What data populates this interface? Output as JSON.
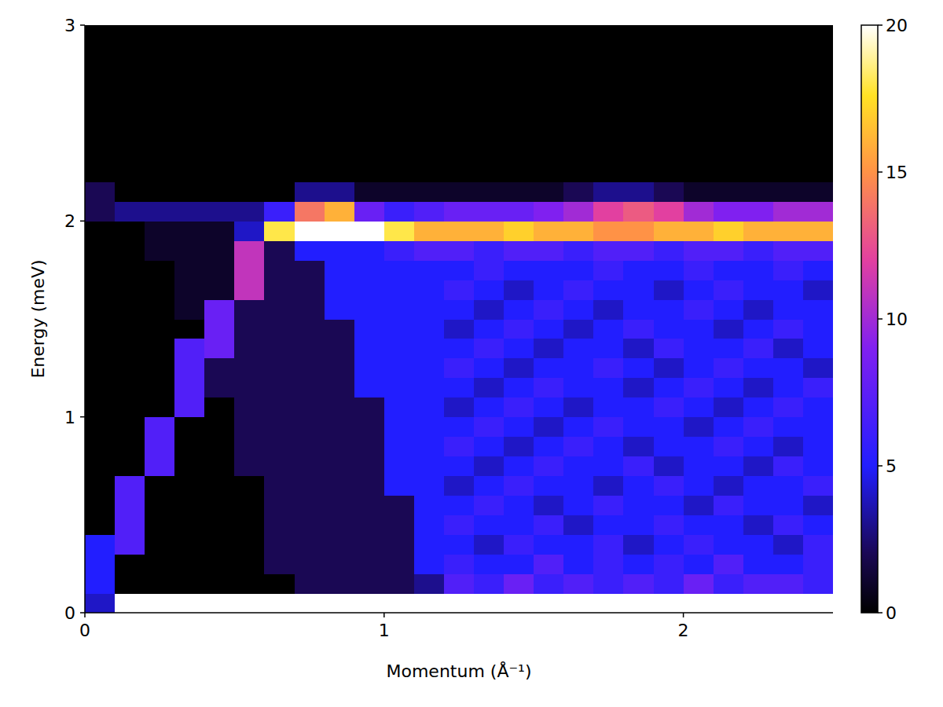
{
  "chart_data": {
    "type": "heatmap",
    "x_label": "Momentum (Å⁻¹)",
    "y_label": "Energy (meV)",
    "xlim": [
      0,
      2.5
    ],
    "ylim": [
      0,
      3
    ],
    "xticks": [
      0,
      1,
      2
    ],
    "yticks": [
      0,
      1,
      2,
      3
    ],
    "x_bins": [
      0,
      0.1,
      0.2,
      0.3,
      0.4,
      0.5,
      0.6,
      0.7,
      0.8,
      0.9,
      1.0,
      1.1,
      1.2,
      1.3,
      1.4,
      1.5,
      1.6,
      1.7,
      1.8,
      1.9,
      2.0,
      2.1,
      2.2,
      2.3,
      2.4,
      2.5
    ],
    "y_bins": [
      0,
      0.1,
      0.2,
      0.3,
      0.4,
      0.5,
      0.6,
      0.7,
      0.8,
      0.9,
      1.0,
      1.1,
      1.2,
      1.3,
      1.4,
      1.5,
      1.6,
      1.7,
      1.8,
      1.9,
      2.0,
      2.1,
      2.2,
      2.3,
      2.4,
      2.5,
      2.6,
      2.7,
      2.8,
      2.9,
      3.0
    ],
    "values": [
      [
        4,
        20,
        20,
        20,
        20,
        20,
        20,
        20,
        20,
        20,
        20,
        20,
        20,
        20,
        20,
        20,
        20,
        20,
        20,
        20,
        20,
        20,
        20,
        20,
        20
      ],
      [
        5,
        0,
        0,
        0,
        0,
        0,
        0,
        2,
        2,
        2,
        2,
        3,
        7,
        6,
        8,
        6,
        7,
        6,
        7,
        6,
        8,
        6,
        7,
        7,
        6
      ],
      [
        5,
        0,
        0,
        0,
        0,
        0,
        2,
        2,
        2,
        2,
        2,
        5,
        6,
        5,
        5,
        7,
        5,
        6,
        5,
        6,
        5,
        7,
        5,
        5,
        6
      ],
      [
        5,
        7,
        0,
        0,
        0,
        0,
        2,
        2,
        2,
        2,
        2,
        5,
        5,
        4,
        6,
        5,
        5,
        6,
        4,
        5,
        6,
        5,
        5,
        4,
        6
      ],
      [
        0,
        7,
        0,
        0,
        0,
        0,
        2,
        2,
        2,
        2,
        2,
        5,
        6,
        5,
        5,
        6,
        4,
        5,
        5,
        6,
        5,
        5,
        4,
        6,
        5
      ],
      [
        0,
        7,
        0,
        0,
        0,
        0,
        2,
        2,
        2,
        2,
        2,
        5,
        5,
        6,
        5,
        4,
        5,
        6,
        5,
        5,
        4,
        6,
        5,
        5,
        4
      ],
      [
        0,
        7,
        0,
        0,
        0,
        0,
        2,
        2,
        2,
        2,
        5,
        5,
        4,
        5,
        6,
        5,
        5,
        4,
        5,
        6,
        5,
        4,
        5,
        5,
        6
      ],
      [
        0,
        0,
        7,
        0,
        0,
        2,
        2,
        2,
        2,
        2,
        5,
        5,
        5,
        4,
        5,
        6,
        5,
        5,
        6,
        4,
        5,
        5,
        4,
        6,
        5
      ],
      [
        0,
        0,
        7,
        0,
        0,
        2,
        2,
        2,
        2,
        2,
        5,
        5,
        6,
        5,
        4,
        5,
        6,
        5,
        4,
        5,
        5,
        6,
        5,
        4,
        5
      ],
      [
        0,
        0,
        7,
        0,
        0,
        2,
        2,
        2,
        2,
        2,
        5,
        5,
        5,
        6,
        5,
        4,
        5,
        6,
        5,
        5,
        4,
        5,
        6,
        5,
        5
      ],
      [
        0,
        0,
        0,
        7,
        0,
        2,
        2,
        2,
        2,
        2,
        5,
        5,
        4,
        5,
        6,
        5,
        4,
        5,
        5,
        6,
        5,
        4,
        5,
        6,
        5
      ],
      [
        0,
        0,
        0,
        7,
        2,
        2,
        2,
        2,
        2,
        5,
        5,
        5,
        5,
        4,
        5,
        6,
        5,
        5,
        4,
        5,
        6,
        5,
        4,
        5,
        6
      ],
      [
        0,
        0,
        0,
        7,
        2,
        2,
        2,
        2,
        2,
        5,
        5,
        5,
        6,
        5,
        4,
        5,
        5,
        6,
        5,
        4,
        5,
        6,
        5,
        5,
        4
      ],
      [
        0,
        0,
        0,
        7,
        8,
        2,
        2,
        2,
        2,
        5,
        5,
        5,
        5,
        6,
        5,
        4,
        5,
        5,
        4,
        6,
        5,
        5,
        6,
        4,
        5
      ],
      [
        0,
        0,
        0,
        0,
        8,
        2,
        2,
        2,
        2,
        5,
        5,
        5,
        4,
        5,
        6,
        5,
        4,
        5,
        6,
        5,
        5,
        4,
        5,
        6,
        5
      ],
      [
        0,
        0,
        0,
        1,
        8,
        2,
        2,
        2,
        5,
        5,
        5,
        5,
        5,
        4,
        5,
        6,
        5,
        4,
        5,
        5,
        6,
        5,
        4,
        5,
        5
      ],
      [
        0,
        0,
        0,
        1,
        1,
        11,
        2,
        2,
        5,
        5,
        5,
        5,
        6,
        5,
        4,
        5,
        6,
        5,
        5,
        4,
        5,
        6,
        5,
        5,
        4
      ],
      [
        0,
        0,
        0,
        1,
        1,
        11,
        2,
        2,
        5,
        5,
        5,
        5,
        5,
        6,
        5,
        5,
        5,
        6,
        5,
        5,
        6,
        5,
        5,
        6,
        5
      ],
      [
        0,
        0,
        1,
        1,
        1,
        11,
        2,
        5,
        5,
        5,
        6,
        7,
        7,
        6,
        7,
        7,
        6,
        7,
        7,
        6,
        7,
        7,
        6,
        7,
        7
      ],
      [
        0,
        0,
        1,
        1,
        1,
        4,
        18,
        20,
        20,
        20,
        18,
        16,
        16,
        16,
        17,
        16,
        16,
        15,
        15,
        16,
        16,
        17,
        16,
        16,
        16
      ],
      [
        2,
        3,
        3,
        3,
        3,
        3,
        6,
        14,
        16,
        8,
        6,
        7,
        8,
        8,
        8,
        9,
        10,
        12,
        13,
        12,
        10,
        9,
        9,
        10,
        10
      ],
      [
        2,
        0,
        0,
        0,
        0,
        0,
        0,
        3,
        3,
        1,
        1,
        1,
        1,
        1,
        1,
        1,
        2,
        3,
        3,
        2,
        1,
        1,
        1,
        1,
        1
      ],
      [
        0,
        0,
        0,
        0,
        0,
        0,
        0,
        0,
        0,
        0,
        0,
        0,
        0,
        0,
        0,
        0,
        0,
        0,
        0,
        0,
        0,
        0,
        0,
        0,
        0
      ],
      [
        0,
        0,
        0,
        0,
        0,
        0,
        0,
        0,
        0,
        0,
        0,
        0,
        0,
        0,
        0,
        0,
        0,
        0,
        0,
        0,
        0,
        0,
        0,
        0,
        0
      ],
      [
        0,
        0,
        0,
        0,
        0,
        0,
        0,
        0,
        0,
        0,
        0,
        0,
        0,
        0,
        0,
        0,
        0,
        0,
        0,
        0,
        0,
        0,
        0,
        0,
        0
      ],
      [
        0,
        0,
        0,
        0,
        0,
        0,
        0,
        0,
        0,
        0,
        0,
        0,
        0,
        0,
        0,
        0,
        0,
        0,
        0,
        0,
        0,
        0,
        0,
        0,
        0
      ],
      [
        0,
        0,
        0,
        0,
        0,
        0,
        0,
        0,
        0,
        0,
        0,
        0,
        0,
        0,
        0,
        0,
        0,
        0,
        0,
        0,
        0,
        0,
        0,
        0,
        0
      ],
      [
        0,
        0,
        0,
        0,
        0,
        0,
        0,
        0,
        0,
        0,
        0,
        0,
        0,
        0,
        0,
        0,
        0,
        0,
        0,
        0,
        0,
        0,
        0,
        0,
        0
      ],
      [
        0,
        0,
        0,
        0,
        0,
        0,
        0,
        0,
        0,
        0,
        0,
        0,
        0,
        0,
        0,
        0,
        0,
        0,
        0,
        0,
        0,
        0,
        0,
        0,
        0
      ],
      [
        0,
        0,
        0,
        0,
        0,
        0,
        0,
        0,
        0,
        0,
        0,
        0,
        0,
        0,
        0,
        0,
        0,
        0,
        0,
        0,
        0,
        0,
        0,
        0,
        0
      ]
    ],
    "colorbar_range": [
      0,
      20
    ],
    "colorbar_ticks": [
      0,
      5,
      10,
      15,
      20
    ]
  }
}
